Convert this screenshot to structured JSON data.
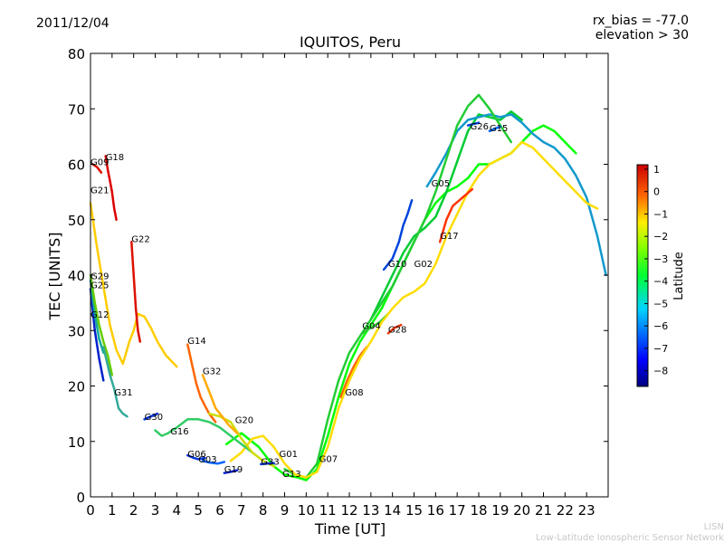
{
  "header": {
    "date": "2011/12/04",
    "rx_bias": "rx_bias = -77.0",
    "elevation": "elevation > 30"
  },
  "footer": {
    "line1": "LISN",
    "line2": "Low-Latitude Ionospheric Sensor Network"
  },
  "chart_data": {
    "type": "line",
    "title": "IQUITOS, Peru",
    "xlabel": "Time [UT]",
    "ylabel": "TEC [UNITS]",
    "xlim": [
      0,
      24
    ],
    "ylim": [
      0,
      80
    ],
    "xticks": [
      0,
      1,
      2,
      3,
      4,
      5,
      6,
      7,
      8,
      9,
      10,
      11,
      12,
      13,
      14,
      15,
      16,
      17,
      18,
      19,
      20,
      21,
      22,
      23
    ],
    "yticks": [
      0,
      10,
      20,
      30,
      40,
      50,
      60,
      70,
      80
    ],
    "grid": false,
    "colorbar": {
      "label": "Latitude",
      "range": [
        -8.7,
        1.2
      ],
      "ticks": [
        1,
        0,
        -1,
        -2,
        -3,
        -4,
        -5,
        -6,
        -7,
        -8
      ]
    },
    "series": [
      {
        "name": "G01",
        "label_at": [
          8.75,
          7.2
        ],
        "color": "#00ff00",
        "x": [
          6.3,
          7.0,
          7.8,
          8.5,
          9.0,
          9.6,
          10.0,
          10.5,
          11.0,
          11.5,
          12.0,
          12.5,
          13.0,
          13.5,
          14.0,
          14.5,
          15.0,
          15.5,
          16.0,
          16.5,
          17.0,
          17.5,
          18.0,
          18.5,
          19.0,
          19.5,
          20.0,
          20.5,
          21.0,
          21.5,
          22.0,
          22.5
        ],
        "y": [
          9.5,
          11.5,
          9.0,
          5.5,
          4.0,
          3.5,
          3.0,
          5.0,
          11.0,
          18.0,
          24.0,
          28.0,
          31.0,
          34.0,
          38.0,
          42.0,
          46.0,
          50.0,
          53.0,
          55.0,
          56.0,
          57.5,
          60.0,
          60.0,
          61.0,
          62.0,
          64.0,
          66.0,
          67.0,
          66.0,
          64.0,
          62.0
        ]
      },
      {
        "name": "G02",
        "label_at": [
          15.0,
          41.5
        ],
        "color": "#00cc33",
        "x": [
          13.0,
          13.5,
          14.0,
          14.5,
          15.0,
          15.5,
          16.0,
          16.5,
          17.0,
          17.5,
          18.0,
          18.5,
          19.0,
          19.5,
          20.0
        ],
        "y": [
          32.0,
          36.0,
          40.0,
          44.0,
          47.0,
          48.5,
          50.5,
          55.0,
          60.5,
          66.0,
          69.0,
          68.5,
          68.0,
          69.5,
          68.0
        ]
      },
      {
        "name": "G03",
        "label_at": [
          5.0,
          6.2
        ],
        "color": "#0066ff",
        "x": [
          5.2,
          5.5,
          5.9,
          6.2
        ],
        "y": [
          6.5,
          6.2,
          6.0,
          6.3
        ]
      },
      {
        "name": "G04",
        "label_at": [
          12.6,
          30.3
        ],
        "color": "#33cc33",
        "x": [
          12.6,
          13.0,
          13.4,
          13.8
        ],
        "y": [
          29.5,
          30.5,
          31.5,
          33.0
        ]
      },
      {
        "name": "G05",
        "label_at": [
          15.8,
          56.0
        ],
        "color": "#1199cc",
        "x": [
          15.6,
          16.0,
          16.5,
          17.0,
          17.5,
          18.0,
          18.5,
          19.0,
          19.5,
          20.0,
          20.5,
          21.0,
          21.5,
          22.0,
          22.5,
          23.0,
          23.5,
          23.9
        ],
        "y": [
          56.0,
          58.5,
          62.0,
          66.0,
          68.0,
          68.5,
          69.0,
          68.5,
          69.0,
          67.5,
          65.5,
          64.0,
          63.0,
          61.0,
          58.0,
          54.0,
          47.0,
          40.0
        ]
      },
      {
        "name": "G06",
        "label_at": [
          4.5,
          7.2
        ],
        "color": "#0033dd",
        "x": [
          4.5,
          4.8,
          5.0,
          5.3
        ],
        "y": [
          7.5,
          7.0,
          6.8,
          7.0
        ]
      },
      {
        "name": "G07",
        "label_at": [
          10.6,
          6.3
        ],
        "color": "#22cc33",
        "x": [
          9.0,
          9.5,
          10.0,
          10.5,
          11.0,
          11.5,
          12.0,
          12.5,
          13.0,
          13.5,
          14.0,
          14.5,
          15.0,
          15.5,
          16.0,
          16.5,
          17.0,
          17.5,
          18.0,
          18.5,
          19.0,
          19.5
        ],
        "y": [
          5.0,
          4.0,
          3.5,
          6.0,
          14.0,
          21.0,
          26.0,
          29.0,
          32.0,
          35.0,
          38.0,
          42.0,
          46.0,
          50.0,
          55.0,
          61.0,
          67.0,
          70.5,
          72.5,
          70.0,
          67.0,
          64.0
        ]
      },
      {
        "name": "G08",
        "label_at": [
          11.8,
          18.3
        ],
        "color": "#ff6600",
        "x": [
          11.6,
          11.9,
          12.2,
          12.5,
          12.8
        ],
        "y": [
          18.0,
          21.0,
          23.5,
          25.5,
          27.0
        ]
      },
      {
        "name": "G09",
        "label_at": [
          0.0,
          59.8
        ],
        "color": "#dd1100",
        "x": [
          0.1,
          0.3,
          0.5
        ],
        "y": [
          60.0,
          59.5,
          58.5
        ]
      },
      {
        "name": "G10",
        "label_at": [
          13.8,
          41.5
        ],
        "color": "#0044dd",
        "x": [
          13.6,
          13.8,
          14.0,
          14.3,
          14.5,
          14.7,
          14.9
        ],
        "y": [
          41.0,
          42.0,
          43.0,
          46.0,
          49.0,
          51.0,
          53.5
        ]
      },
      {
        "name": "G12",
        "label_at": [
          0.0,
          32.3
        ],
        "color": "#0022cc",
        "x": [
          0.0,
          0.2,
          0.4,
          0.6
        ],
        "y": [
          37.5,
          30.0,
          25.0,
          21.0
        ]
      },
      {
        "name": "G13",
        "label_at": [
          8.9,
          3.6
        ],
        "color": "#ffdd00",
        "x": [
          6.5,
          7.0,
          7.5,
          8.0,
          8.5,
          9.0,
          9.5,
          10.0,
          10.5,
          11.0,
          11.5,
          12.0,
          12.5,
          13.0,
          13.5,
          14.0,
          14.5,
          15.0,
          15.5,
          16.0,
          16.5,
          17.0,
          17.5,
          18.0,
          18.5,
          19.0,
          19.5,
          20.0,
          20.5,
          21.0,
          21.5,
          22.0,
          22.5,
          23.0,
          23.5
        ],
        "y": [
          6.5,
          8.0,
          10.5,
          11.0,
          9.0,
          6.0,
          4.0,
          3.5,
          4.5,
          9.0,
          16.0,
          21.0,
          25.0,
          28.0,
          31.5,
          34.0,
          36.0,
          37.0,
          38.5,
          42.0,
          47.0,
          51.0,
          55.0,
          58.0,
          60.0,
          61.0,
          62.0,
          64.0,
          63.0,
          61.0,
          59.0,
          57.0,
          55.0,
          53.0,
          52.0
        ]
      },
      {
        "name": "G14",
        "label_at": [
          4.5,
          27.6
        ],
        "color": "#ff6600",
        "x": [
          4.5,
          4.7,
          4.9,
          5.1,
          5.3,
          5.5,
          5.8
        ],
        "y": [
          27.5,
          24.0,
          20.5,
          18.0,
          16.5,
          15.0,
          13.5
        ]
      },
      {
        "name": "G15",
        "label_at": [
          18.5,
          66.0
        ],
        "color": "#0066ee",
        "x": [
          18.5,
          18.8,
          19.0
        ],
        "y": [
          66.0,
          66.5,
          66.8
        ]
      },
      {
        "name": "G16",
        "label_at": [
          3.7,
          11.3
        ],
        "color": "#33cc66",
        "x": [
          3.0,
          3.3,
          3.6,
          4.0,
          4.5,
          5.0,
          5.5,
          6.0,
          6.5,
          7.0,
          7.5
        ],
        "y": [
          12.0,
          11.0,
          11.5,
          12.5,
          14.0,
          14.0,
          13.5,
          12.5,
          11.0,
          9.5,
          8.0
        ]
      },
      {
        "name": "G17",
        "label_at": [
          16.2,
          46.5
        ],
        "color": "#ff3300",
        "x": [
          16.2,
          16.5,
          16.8,
          17.1,
          17.4,
          17.7
        ],
        "y": [
          46.0,
          50.0,
          52.5,
          53.5,
          54.5,
          55.5
        ]
      },
      {
        "name": "G18",
        "label_at": [
          0.7,
          60.7
        ],
        "color": "#dd0000",
        "x": [
          0.7,
          0.8,
          0.9,
          1.0,
          1.1,
          1.2
        ],
        "y": [
          61.5,
          59.0,
          57.0,
          55.0,
          52.0,
          50.0
        ]
      },
      {
        "name": "G19",
        "label_at": [
          6.2,
          4.4
        ],
        "color": "#0022cc",
        "x": [
          6.2,
          6.5,
          6.8
        ],
        "y": [
          4.3,
          4.5,
          4.8
        ]
      },
      {
        "name": "G20",
        "label_at": [
          6.7,
          13.3
        ],
        "color": "#ccdd00",
        "x": [
          5.5,
          6.0,
          6.5,
          7.0,
          7.5,
          8.0,
          8.5
        ],
        "y": [
          15.0,
          14.5,
          13.5,
          10.5,
          8.0,
          6.5,
          5.5
        ]
      },
      {
        "name": "G21",
        "label_at": [
          0.0,
          54.8
        ],
        "color": "#ffcc00",
        "x": [
          0.0,
          0.3,
          0.6,
          0.9,
          1.2,
          1.5,
          1.8,
          2.0,
          2.2,
          2.5,
          2.8,
          3.1,
          3.5,
          4.0
        ],
        "y": [
          53.0,
          45.0,
          38.0,
          31.0,
          26.5,
          24.0,
          28.0,
          30.0,
          33.0,
          32.5,
          30.5,
          28.0,
          25.5,
          23.5
        ]
      },
      {
        "name": "G22",
        "label_at": [
          1.9,
          46.0
        ],
        "color": "#dd1100",
        "x": [
          1.9,
          2.0,
          2.1,
          2.2,
          2.3
        ],
        "y": [
          46.0,
          40.0,
          34.0,
          30.0,
          28.0
        ]
      },
      {
        "name": "G25",
        "label_at": [
          0.0,
          37.6
        ],
        "color": "#11aa99",
        "x": [
          0.0,
          0.2,
          0.4,
          0.6
        ],
        "y": [
          39.0,
          33.0,
          28.5,
          26.0
        ]
      },
      {
        "name": "G26",
        "label_at": [
          17.6,
          66.3
        ],
        "color": "#0044dd",
        "x": [
          17.5,
          17.8,
          18.0
        ],
        "y": [
          67.0,
          67.3,
          67.5
        ]
      },
      {
        "name": "G28",
        "label_at": [
          13.8,
          29.6
        ],
        "color": "#ee3300",
        "x": [
          13.8,
          14.1,
          14.4
        ],
        "y": [
          29.5,
          30.5,
          31.0
        ]
      },
      {
        "name": "G29",
        "label_at": [
          0.0,
          39.3
        ],
        "color": "#66cc00",
        "x": [
          0.0,
          0.2,
          0.4,
          0.6,
          0.8,
          1.0
        ],
        "y": [
          40.0,
          35.0,
          31.0,
          28.0,
          25.5,
          22.0
        ]
      },
      {
        "name": "G30",
        "label_at": [
          2.5,
          13.9
        ],
        "color": "#0033dd",
        "x": [
          2.5,
          2.8,
          3.1
        ],
        "y": [
          14.0,
          14.5,
          15.0
        ]
      },
      {
        "name": "G31",
        "label_at": [
          1.1,
          18.3
        ],
        "color": "#33aa99",
        "x": [
          0.6,
          0.9,
          1.1,
          1.3,
          1.5,
          1.7
        ],
        "y": [
          27.0,
          22.0,
          19.5,
          16.0,
          15.0,
          14.5
        ]
      },
      {
        "name": "G32",
        "label_at": [
          5.2,
          22.1
        ],
        "color": "#ffaa00",
        "x": [
          5.2,
          5.5,
          5.8,
          6.1,
          6.4,
          6.8
        ],
        "y": [
          22.0,
          19.0,
          16.0,
          14.5,
          13.0,
          11.5
        ]
      },
      {
        "name": "G33",
        "label_at": [
          7.9,
          5.8
        ],
        "color": "#0033dd",
        "x": [
          7.9,
          8.2,
          8.5
        ],
        "y": [
          5.9,
          6.0,
          6.1
        ]
      }
    ]
  }
}
